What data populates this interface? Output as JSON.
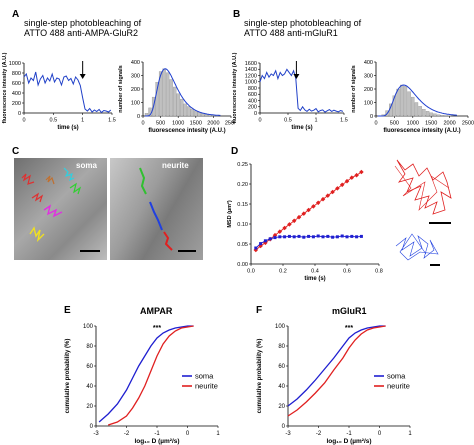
{
  "panels": {
    "A": {
      "letter": "A",
      "title_line1": "single-step photobleaching of",
      "title_line2": "ATTO 488 anti-AMPA-GluR2"
    },
    "B": {
      "letter": "B",
      "title_line1": "single-step photobleaching of",
      "title_line2": "ATTO 488 anti-mGluR1"
    },
    "C": {
      "letter": "C",
      "label_soma": "soma",
      "label_neurite": "neurite"
    },
    "D": {
      "letter": "D"
    },
    "E": {
      "letter": "E",
      "title": "AMPAR",
      "significance": "***"
    },
    "F": {
      "letter": "F",
      "title": "mGluR1",
      "significance": "***"
    }
  },
  "colors": {
    "soma": "#1f1fd0",
    "neurite": "#e02020",
    "hist_bar": "#c0c0c0",
    "fit": "#1f3fd0",
    "trace": "#2040c8"
  },
  "chart_data": [
    {
      "id": "A-trace",
      "type": "line",
      "xlabel": "time (s)",
      "ylabel": "fluorescence intesity (A.U.)",
      "xlim": [
        0,
        1.5
      ],
      "ylim": [
        0,
        1000
      ],
      "xticks": [
        "0",
        "0.5",
        "1",
        "1.5"
      ],
      "yticks": [
        "0",
        "200",
        "400",
        "600",
        "800",
        "1000"
      ],
      "x": [
        0,
        0.04,
        0.08,
        0.12,
        0.16,
        0.2,
        0.24,
        0.28,
        0.32,
        0.36,
        0.4,
        0.44,
        0.48,
        0.52,
        0.56,
        0.6,
        0.64,
        0.68,
        0.72,
        0.76,
        0.8,
        0.84,
        0.88,
        0.92,
        0.96,
        1.0,
        1.04,
        1.08,
        1.12,
        1.16,
        1.2,
        1.24,
        1.28,
        1.32,
        1.36,
        1.4,
        1.44,
        1.48
      ],
      "y": [
        720,
        780,
        600,
        700,
        650,
        820,
        560,
        680,
        750,
        600,
        700,
        640,
        780,
        620,
        700,
        680,
        560,
        720,
        740,
        650,
        690,
        580,
        720,
        660,
        550,
        300,
        80,
        40,
        90,
        20,
        60,
        30,
        70,
        10,
        50,
        40,
        20,
        60
      ],
      "annotation": "arrow at ~1.0 s"
    },
    {
      "id": "A-hist",
      "type": "bar",
      "xlabel": "fluorescence intesity (A.U.)",
      "ylabel": "number of signals",
      "xlim": [
        0,
        2500
      ],
      "ylim": [
        0,
        400
      ],
      "xticks": [
        "0",
        "500",
        "1000",
        "1500",
        "2000",
        "2500"
      ],
      "yticks": [
        "0",
        "100",
        "200",
        "300",
        "400"
      ],
      "x": [
        100,
        200,
        300,
        400,
        500,
        600,
        700,
        800,
        900,
        1000,
        1100,
        1200,
        1300,
        1400,
        1500,
        1600,
        1700,
        1800,
        1900,
        2000,
        2100
      ],
      "values": [
        20,
        60,
        140,
        250,
        330,
        350,
        320,
        270,
        215,
        165,
        125,
        90,
        70,
        52,
        38,
        28,
        20,
        14,
        10,
        6,
        4
      ],
      "fit": "gaussian fit, peak ~630 A.U."
    },
    {
      "id": "B-trace",
      "type": "line",
      "xlabel": "time (s)",
      "ylabel": "fluorescence intesity (A.U.)",
      "xlim": [
        0,
        1.5
      ],
      "ylim": [
        0,
        1600
      ],
      "xticks": [
        "0",
        "0.5",
        "1",
        "1.5"
      ],
      "yticks": [
        "0",
        "200",
        "400",
        "600",
        "800",
        "1000",
        "1200",
        "1400",
        "1600"
      ],
      "x": [
        0,
        0.04,
        0.08,
        0.12,
        0.16,
        0.2,
        0.24,
        0.28,
        0.32,
        0.36,
        0.4,
        0.44,
        0.48,
        0.52,
        0.56,
        0.6,
        0.64,
        0.68,
        0.72,
        0.76,
        0.8,
        0.84,
        0.88,
        0.92,
        0.96,
        1.0,
        1.04,
        1.08,
        1.12,
        1.16,
        1.2,
        1.24,
        1.28,
        1.32,
        1.36,
        1.4,
        1.44,
        1.48
      ],
      "y": [
        1000,
        1200,
        1100,
        1300,
        1150,
        1250,
        1200,
        1350,
        1100,
        1300,
        1200,
        1250,
        1400,
        1300,
        1200,
        1350,
        1100,
        150,
        80,
        200,
        100,
        50,
        120,
        60,
        90,
        140,
        40,
        80,
        100,
        30,
        70,
        110,
        50,
        90,
        60,
        40,
        80,
        50
      ],
      "annotation": "arrow at ~0.65 s"
    },
    {
      "id": "B-hist",
      "type": "bar",
      "xlabel": "fluorescence intesity (A.U.)",
      "ylabel": "number of signals",
      "xlim": [
        0,
        2500
      ],
      "ylim": [
        0,
        400
      ],
      "xticks": [
        "0",
        "500",
        "1000",
        "1500",
        "2000",
        "2500"
      ],
      "yticks": [
        "0",
        "100",
        "200",
        "300",
        "400"
      ],
      "x": [
        200,
        300,
        400,
        500,
        600,
        700,
        800,
        900,
        1000,
        1100,
        1200,
        1300,
        1400,
        1500,
        1600,
        1700,
        1800,
        1900,
        2000
      ],
      "values": [
        10,
        40,
        90,
        150,
        200,
        230,
        220,
        180,
        140,
        100,
        72,
        50,
        35,
        24,
        16,
        10,
        6,
        4,
        2
      ],
      "fit": "gaussian fit, peak ~750 A.U."
    },
    {
      "id": "D-msd",
      "type": "line",
      "xlabel": "time (s)",
      "ylabel": "MSD (µm²)",
      "xlim": [
        0,
        0.8
      ],
      "ylim": [
        0,
        0.25
      ],
      "xticks": [
        "0.0",
        "0.2",
        "0.4",
        "0.6",
        "0.8"
      ],
      "yticks": [
        "0.00",
        "0.05",
        "0.10",
        "0.15",
        "0.20",
        "0.25"
      ],
      "series": [
        {
          "key": "neurite",
          "x": [
            0.03,
            0.06,
            0.09,
            0.12,
            0.15,
            0.18,
            0.21,
            0.24,
            0.27,
            0.3,
            0.33,
            0.36,
            0.39,
            0.42,
            0.45,
            0.48,
            0.51,
            0.54,
            0.57,
            0.6,
            0.63,
            0.66,
            0.69
          ],
          "y": [
            0.035,
            0.045,
            0.053,
            0.062,
            0.072,
            0.081,
            0.09,
            0.099,
            0.108,
            0.117,
            0.126,
            0.135,
            0.144,
            0.153,
            0.162,
            0.171,
            0.18,
            0.189,
            0.198,
            0.207,
            0.216,
            0.222,
            0.23
          ]
        },
        {
          "key": "soma",
          "x": [
            0.03,
            0.06,
            0.09,
            0.12,
            0.15,
            0.18,
            0.21,
            0.24,
            0.27,
            0.3,
            0.33,
            0.36,
            0.39,
            0.42,
            0.45,
            0.48,
            0.51,
            0.54,
            0.57,
            0.6,
            0.63,
            0.66,
            0.69
          ],
          "y": [
            0.04,
            0.051,
            0.058,
            0.063,
            0.066,
            0.068,
            0.068,
            0.069,
            0.068,
            0.069,
            0.067,
            0.069,
            0.068,
            0.07,
            0.068,
            0.069,
            0.067,
            0.068,
            0.07,
            0.068,
            0.069,
            0.068,
            0.069
          ]
        }
      ]
    },
    {
      "id": "E-cdf",
      "type": "line",
      "title": "AMPAR",
      "xlabel": "log₁₀ D (µm²/s)",
      "ylabel": "cumulative probability (%)",
      "xlim": [
        -3,
        1
      ],
      "ylim": [
        0,
        100
      ],
      "xticks": [
        "-3",
        "-2",
        "-1",
        "0",
        "1"
      ],
      "yticks": [
        "0",
        "20",
        "40",
        "60",
        "80",
        "100"
      ],
      "legend": [
        "soma",
        "neurite"
      ],
      "series": [
        {
          "name": "soma",
          "x": [
            -2.9,
            -2.6,
            -2.3,
            -2.0,
            -1.8,
            -1.6,
            -1.4,
            -1.2,
            -1.0,
            -0.8,
            -0.6,
            -0.4,
            -0.2,
            0.0,
            0.2
          ],
          "y": [
            4,
            12,
            22,
            36,
            48,
            60,
            70,
            80,
            88,
            93,
            96,
            98,
            99,
            100,
            100
          ]
        },
        {
          "name": "neurite",
          "x": [
            -2.6,
            -2.3,
            -2.0,
            -1.8,
            -1.6,
            -1.4,
            -1.2,
            -1.0,
            -0.8,
            -0.6,
            -0.4,
            -0.2,
            0.0,
            0.2
          ],
          "y": [
            1,
            4,
            10,
            18,
            28,
            40,
            55,
            70,
            82,
            90,
            95,
            98,
            99,
            100
          ]
        }
      ]
    },
    {
      "id": "F-cdf",
      "type": "line",
      "title": "mGluR1",
      "xlabel": "log₁₀ D (µm²/s)",
      "ylabel": "cumulative probability (%)",
      "xlim": [
        -3,
        1
      ],
      "ylim": [
        0,
        100
      ],
      "xticks": [
        "-3",
        "-2",
        "-1",
        "0",
        "1"
      ],
      "yticks": [
        "0",
        "20",
        "40",
        "60",
        "80",
        "100"
      ],
      "legend": [
        "soma",
        "neurite"
      ],
      "series": [
        {
          "name": "soma",
          "x": [
            -3.0,
            -2.7,
            -2.4,
            -2.1,
            -1.8,
            -1.5,
            -1.2,
            -1.0,
            -0.8,
            -0.6,
            -0.4,
            -0.2,
            0.0,
            0.2
          ],
          "y": [
            20,
            27,
            36,
            46,
            57,
            68,
            80,
            88,
            93,
            96,
            98,
            99,
            100,
            100
          ]
        },
        {
          "name": "neurite",
          "x": [
            -3.0,
            -2.7,
            -2.4,
            -2.1,
            -1.8,
            -1.5,
            -1.2,
            -1.0,
            -0.8,
            -0.6,
            -0.4,
            -0.2,
            0.0,
            0.2
          ],
          "y": [
            10,
            16,
            24,
            33,
            43,
            56,
            68,
            78,
            86,
            92,
            96,
            98,
            99,
            100
          ]
        }
      ]
    }
  ]
}
